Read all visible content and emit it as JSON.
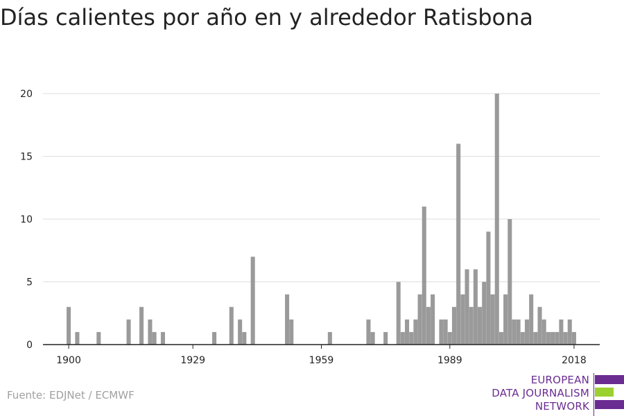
{
  "title": "Días calientes por año en y alrededor Ratisbona",
  "source": "Fuente: EDJNet / ECMWF",
  "logo": {
    "lines": [
      "EUROPEAN",
      "DATA JOURNALISM",
      "NETWORK"
    ],
    "colors": [
      "#6a2c91",
      "#9bd12f",
      "#6a2c91"
    ]
  },
  "colors": {
    "bar": "#9a9a9a",
    "grid": "#dddddd",
    "axis": "#222222"
  },
  "chart_data": {
    "type": "bar",
    "title": "Días calientes por año en y alrededor Ratisbona",
    "xlabel": "",
    "ylabel": "",
    "xlim": [
      1894,
      2024
    ],
    "ylim": [
      0,
      20
    ],
    "x_ticks": [
      1900,
      1929,
      1959,
      1989,
      2018
    ],
    "y_ticks": [
      0,
      5,
      10,
      15,
      20
    ],
    "grid": true,
    "x": [
      1900,
      1902,
      1907,
      1914,
      1917,
      1919,
      1920,
      1922,
      1934,
      1938,
      1940,
      1941,
      1943,
      1951,
      1952,
      1961,
      1970,
      1971,
      1974,
      1977,
      1978,
      1979,
      1980,
      1981,
      1982,
      1983,
      1984,
      1985,
      1987,
      1988,
      1989,
      1990,
      1991,
      1992,
      1993,
      1994,
      1995,
      1996,
      1997,
      1998,
      1999,
      2000,
      2001,
      2002,
      2003,
      2004,
      2005,
      2006,
      2007,
      2008,
      2009,
      2010,
      2011,
      2012,
      2013,
      2014,
      2015,
      2016,
      2017,
      2018
    ],
    "values": [
      3,
      1,
      1,
      2,
      3,
      2,
      1,
      1,
      1,
      3,
      2,
      1,
      7,
      4,
      2,
      1,
      2,
      1,
      1,
      5,
      1,
      2,
      1,
      2,
      4,
      11,
      3,
      4,
      2,
      2,
      1,
      3,
      16,
      4,
      6,
      3,
      6,
      3,
      5,
      9,
      4,
      20,
      1,
      4,
      10,
      2,
      2,
      1,
      2,
      4,
      1,
      3,
      2,
      1,
      1,
      1,
      2,
      1,
      2,
      1
    ]
  }
}
